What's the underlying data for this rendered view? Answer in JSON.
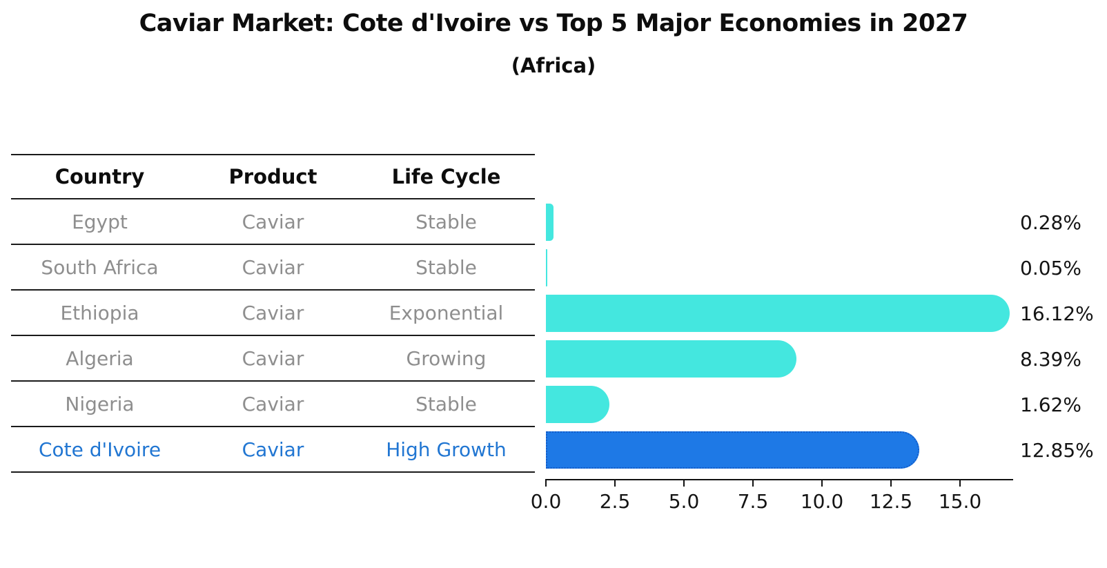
{
  "title": "Caviar Market: Cote d'Ivoire vs Top 5 Major Economies in 2027",
  "subtitle": "(Africa)",
  "table": {
    "headers": [
      "Country",
      "Product",
      "Life Cycle"
    ],
    "rows": [
      {
        "country": "Egypt",
        "product": "Caviar",
        "life_cycle": "Stable",
        "highlight": false
      },
      {
        "country": "South Africa",
        "product": "Caviar",
        "life_cycle": "Stable",
        "highlight": false
      },
      {
        "country": "Ethiopia",
        "product": "Caviar",
        "life_cycle": "Exponential",
        "highlight": false
      },
      {
        "country": "Algeria",
        "product": "Caviar",
        "life_cycle": "Growing",
        "highlight": false
      },
      {
        "country": "Nigeria",
        "product": "Caviar",
        "life_cycle": "Stable",
        "highlight": false
      },
      {
        "country": "Cote d'Ivoire",
        "product": "Caviar",
        "life_cycle": "High Growth",
        "highlight": true
      }
    ]
  },
  "chart_data": {
    "type": "bar",
    "orientation": "horizontal",
    "title": "Caviar Market: Cote d'Ivoire vs Top 5 Major Economies in 2027 (Africa)",
    "categories": [
      "Egypt",
      "South Africa",
      "Ethiopia",
      "Algeria",
      "Nigeria",
      "Cote d'Ivoire"
    ],
    "values": [
      0.28,
      0.05,
      16.12,
      8.39,
      1.62,
      12.85
    ],
    "value_labels": [
      "0.28%",
      "0.05%",
      "16.12%",
      "8.39%",
      "1.62%",
      "12.85%"
    ],
    "highlight_index": 5,
    "x_ticks": [
      0.0,
      2.5,
      5.0,
      7.5,
      10.0,
      12.5,
      15.0
    ],
    "x_tick_labels": [
      "0.0",
      "2.5",
      "5.0",
      "7.5",
      "10.0",
      "12.5",
      "15.0"
    ],
    "xlim": [
      0,
      16.9
    ],
    "grid": false,
    "legend": "none"
  },
  "colors": {
    "bar_default": "#44e7df",
    "bar_highlight_fill": "#1e79e6",
    "bar_highlight_border": "#135cc8",
    "highlight_text": "#2176d2",
    "table_text": "#8e8e8e",
    "axis": "#111111",
    "label_text": "#141414"
  }
}
